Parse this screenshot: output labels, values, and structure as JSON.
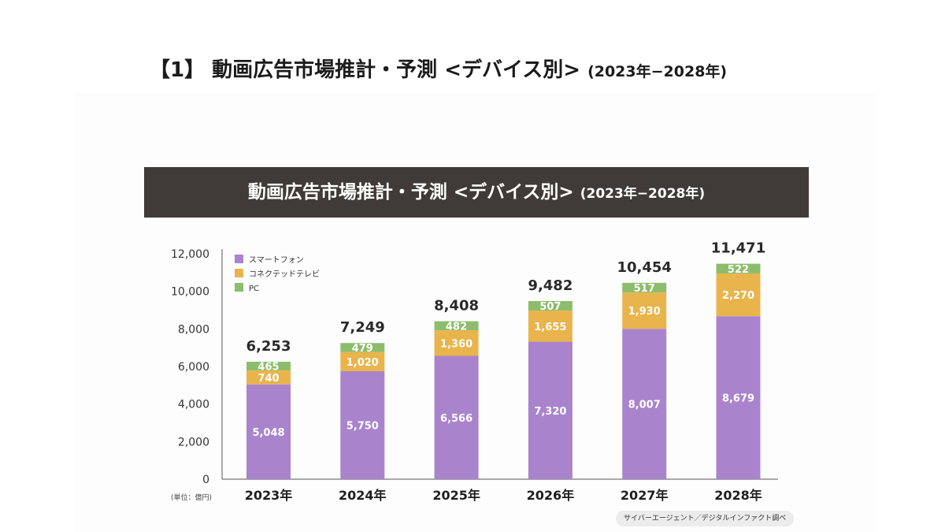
{
  "header": {
    "title_main": "【1】 動画広告市場推計・予測 <デバイス別>",
    "title_sub": "(2023年−2028年)"
  },
  "banner": {
    "title_main": "動画広告市場推計・予測 <デバイス別>",
    "title_sub": "(2023年−2028年)"
  },
  "unit_label": "(単位：億円)",
  "source_label": "サイバーエージェント／デジタルインファクト調べ",
  "colors": {
    "smartphone": "#a984cc",
    "ctv": "#e9b44c",
    "pc": "#8dbd6c",
    "banner_bg": "#403a39"
  },
  "chart_data": {
    "type": "bar",
    "stacked": true,
    "title": "動画広告市場推計・予測 <デバイス別> (2023年−2028年)",
    "xlabel": "",
    "ylabel": "(単位：億円)",
    "ylim": [
      0,
      12000
    ],
    "yticks": [
      0,
      2000,
      4000,
      6000,
      8000,
      10000,
      12000
    ],
    "ytick_labels": [
      "0",
      "2,000",
      "4,000",
      "6,000",
      "8,000",
      "10,000",
      "12,000"
    ],
    "categories": [
      "2023年",
      "2024年",
      "2025年",
      "2026年",
      "2027年",
      "2028年"
    ],
    "series": [
      {
        "name": "スマートフォン",
        "color_key": "smartphone",
        "values": [
          5048,
          5750,
          6566,
          7320,
          8007,
          8679
        ],
        "labels": [
          "5,048",
          "5,750",
          "6,566",
          "7,320",
          "8,007",
          "8,679"
        ]
      },
      {
        "name": "コネクテッドテレビ",
        "color_key": "ctv",
        "values": [
          740,
          1020,
          1360,
          1655,
          1930,
          2270
        ],
        "labels": [
          "740",
          "1,020",
          "1,360",
          "1,655",
          "1,930",
          "2,270"
        ]
      },
      {
        "name": "PC",
        "color_key": "pc",
        "values": [
          465,
          479,
          482,
          507,
          517,
          522
        ],
        "labels": [
          "465",
          "479",
          "482",
          "507",
          "517",
          "522"
        ]
      }
    ],
    "totals": [
      6253,
      7249,
      8408,
      9482,
      10454,
      11471
    ],
    "total_labels": [
      "6,253",
      "7,249",
      "8,408",
      "9,482",
      "10,454",
      "11,471"
    ],
    "legend": [
      "スマートフォン",
      "コネクテッドテレビ",
      "PC"
    ],
    "legend_position": "top-left",
    "grid": false
  }
}
